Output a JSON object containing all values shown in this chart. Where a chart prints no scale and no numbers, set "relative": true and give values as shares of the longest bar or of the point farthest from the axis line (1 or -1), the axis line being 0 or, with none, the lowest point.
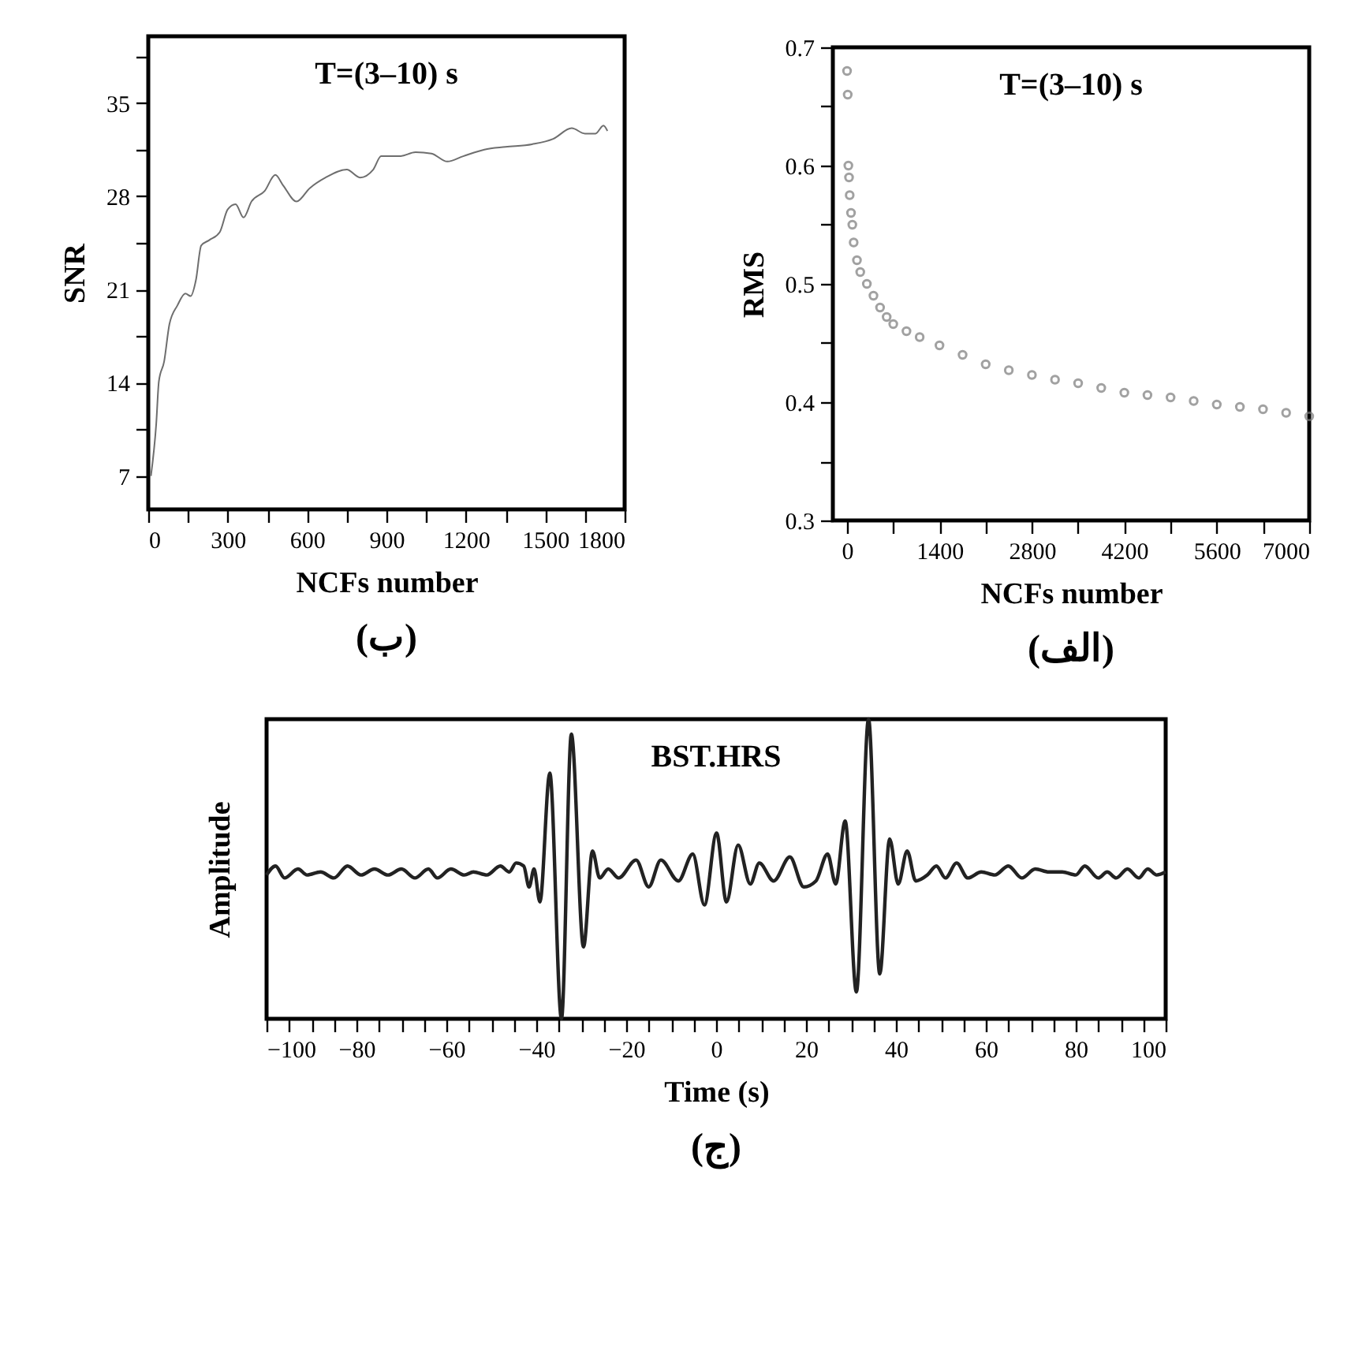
{
  "chart_data": [
    {
      "type": "line",
      "title": "T=(3–10) s",
      "xlabel": "NCFs number",
      "ylabel": "SNR",
      "annotations": [
        "(ب)"
      ],
      "color": "#6e6e6e",
      "marker": "none",
      "xlim": [
        0,
        1800
      ],
      "xticks": [
        0,
        {
          "value": 150,
          "label": null
        },
        300,
        {
          "value": 450,
          "label": null
        },
        600,
        {
          "value": 750,
          "label": null
        },
        900,
        {
          "value": 1050,
          "label": null
        },
        1200,
        {
          "value": 1350,
          "label": null
        },
        1500,
        {
          "value": 1650,
          "label": null
        },
        1800
      ],
      "ylim": [
        4.5,
        40
      ],
      "yticks": [
        7,
        {
          "value": 10.5,
          "label": null
        },
        14,
        {
          "value": 17.5,
          "label": null
        },
        21,
        {
          "value": 24.5,
          "label": null
        },
        28,
        {
          "value": 31.5,
          "label": null
        },
        35,
        {
          "value": 38.5,
          "label": null
        }
      ],
      "x": [
        10,
        30,
        40,
        60,
        80,
        110,
        140,
        160,
        180,
        200,
        230,
        270,
        300,
        330,
        360,
        390,
        440,
        480,
        510,
        560,
        610,
        670,
        750,
        800,
        850,
        880,
        950,
        1010,
        1070,
        1130,
        1190,
        1270,
        1350,
        1450,
        1530,
        1600,
        1650,
        1690,
        1720,
        1735
      ],
      "values": [
        7.0,
        10.9,
        14.1,
        15.6,
        18.4,
        19.8,
        20.7,
        20.5,
        21.7,
        24.3,
        24.7,
        25.3,
        27.0,
        27.4,
        26.4,
        27.6,
        28.4,
        29.6,
        28.8,
        27.6,
        28.6,
        29.4,
        30.0,
        29.4,
        30.0,
        31.0,
        31.0,
        31.3,
        31.2,
        30.6,
        31.0,
        31.5,
        31.7,
        31.9,
        32.3,
        33.1,
        32.7,
        32.7,
        33.3,
        32.9
      ]
    },
    {
      "type": "scatter",
      "title": "T=(3–10) s",
      "xlabel": "NCFs number",
      "ylabel": "RMS",
      "annotations": [
        "(الف)"
      ],
      "color": "#7a7a7a",
      "marker": "circle",
      "xlim": [
        -215,
        7000
      ],
      "xticks": [
        0,
        {
          "value": 700,
          "label": null
        },
        1400,
        {
          "value": 2100,
          "label": null
        },
        2800,
        {
          "value": 3500,
          "label": null
        },
        4200,
        {
          "value": 4900,
          "label": null
        },
        5600,
        {
          "value": 6300,
          "label": null
        },
        7000
      ],
      "ylim": [
        0.3,
        0.7
      ],
      "yticks": [
        0.3,
        {
          "value": 0.35,
          "label": null
        },
        0.4,
        {
          "value": 0.45,
          "label": null
        },
        0.5,
        {
          "value": 0.55,
          "label": null
        },
        0.6,
        {
          "value": 0.65,
          "label": null
        },
        0.7
      ],
      "x": [
        0,
        10,
        20,
        30,
        40,
        60,
        80,
        100,
        150,
        200,
        300,
        400,
        500,
        600,
        700,
        900,
        1100,
        1400,
        1750,
        2100,
        2450,
        2800,
        3150,
        3500,
        3850,
        4200,
        4550,
        4900,
        5250,
        5600,
        5950,
        6300,
        6650,
        7000
      ],
      "values": [
        0.68,
        0.66,
        0.6,
        0.59,
        0.575,
        0.56,
        0.55,
        0.535,
        0.52,
        0.51,
        0.5,
        0.49,
        0.48,
        0.472,
        0.466,
        0.46,
        0.455,
        0.448,
        0.44,
        0.432,
        0.427,
        0.423,
        0.419,
        0.416,
        0.412,
        0.408,
        0.406,
        0.404,
        0.401,
        0.398,
        0.396,
        0.394,
        0.391,
        0.388
      ]
    },
    {
      "type": "line",
      "title": "BST.HRS",
      "xlabel": "Time (s)",
      "ylabel": "Amplitude",
      "annotations": [
        "(ج)"
      ],
      "color": "#222222",
      "marker": "none",
      "relative": true,
      "xlim": [
        -100,
        100
      ],
      "xticks": [
        -100,
        {
          "value": -95,
          "label": null
        },
        {
          "value": -90,
          "label": null
        },
        {
          "value": -85,
          "label": null
        },
        -80,
        {
          "value": -75,
          "label": null
        },
        {
          "value": -70,
          "label": null
        },
        {
          "value": -65,
          "label": null
        },
        -60,
        {
          "value": -55,
          "label": null
        },
        {
          "value": -50,
          "label": null
        },
        {
          "value": -45,
          "label": null
        },
        -40,
        {
          "value": -35,
          "label": null
        },
        {
          "value": -30,
          "label": null
        },
        {
          "value": -25,
          "label": null
        },
        -20,
        {
          "value": -15,
          "label": null
        },
        {
          "value": -10,
          "label": null
        },
        {
          "value": -5,
          "label": null
        },
        0,
        {
          "value": 5,
          "label": null
        },
        {
          "value": 10,
          "label": null
        },
        {
          "value": 15,
          "label": null
        },
        20,
        {
          "value": 25,
          "label": null
        },
        {
          "value": 30,
          "label": null
        },
        {
          "value": 35,
          "label": null
        },
        40,
        {
          "value": 45,
          "label": null
        },
        {
          "value": 50,
          "label": null
        },
        {
          "value": 55,
          "label": null
        },
        60,
        {
          "value": 65,
          "label": null
        },
        {
          "value": 70,
          "label": null
        },
        {
          "value": 75,
          "label": null
        },
        80,
        {
          "value": 85,
          "label": null
        },
        {
          "value": 90,
          "label": null
        },
        {
          "value": 95,
          "label": null
        },
        100
      ],
      "x": [
        -100,
        -98,
        -96,
        -93,
        -91,
        -88,
        -85,
        -82,
        -79,
        -76,
        -73,
        -70,
        -67,
        -64,
        -62,
        -59,
        -56,
        -54,
        -51,
        -48,
        -46,
        -44.5,
        -42.8,
        -41.6,
        -40.5,
        -39.2,
        -37.0,
        -34.4,
        -32.2,
        -29.5,
        -27.5,
        -25.9,
        -24.0,
        -21.7,
        -17.8,
        -15.0,
        -12.3,
        -8.4,
        -5.2,
        -2.6,
        0.1,
        2.3,
        4.9,
        7.6,
        9.6,
        12.8,
        16.4,
        19.5,
        22.2,
        24.8,
        26.6,
        28.7,
        31.2,
        33.9,
        36.4,
        38.6,
        40.5,
        42.5,
        44.4,
        47,
        49,
        51,
        53.5,
        56,
        59,
        62,
        65,
        68,
        71,
        74,
        77,
        80,
        82,
        85,
        87,
        89,
        91.5,
        94,
        96,
        98,
        100
      ],
      "values": [
        0.48,
        0.51,
        0.47,
        0.5,
        0.48,
        0.49,
        0.47,
        0.51,
        0.48,
        0.5,
        0.48,
        0.5,
        0.47,
        0.5,
        0.47,
        0.5,
        0.48,
        0.49,
        0.48,
        0.51,
        0.49,
        0.52,
        0.51,
        0.44,
        0.5,
        0.39,
        0.82,
        0.0,
        0.95,
        0.24,
        0.56,
        0.47,
        0.5,
        0.47,
        0.53,
        0.44,
        0.53,
        0.46,
        0.55,
        0.38,
        0.62,
        0.39,
        0.58,
        0.45,
        0.52,
        0.46,
        0.54,
        0.44,
        0.46,
        0.55,
        0.45,
        0.66,
        0.09,
        1.0,
        0.15,
        0.6,
        0.45,
        0.56,
        0.46,
        0.48,
        0.51,
        0.47,
        0.52,
        0.47,
        0.49,
        0.48,
        0.51,
        0.47,
        0.5,
        0.49,
        0.49,
        0.48,
        0.51,
        0.47,
        0.49,
        0.47,
        0.5,
        0.47,
        0.5,
        0.48,
        0.49
      ]
    }
  ]
}
